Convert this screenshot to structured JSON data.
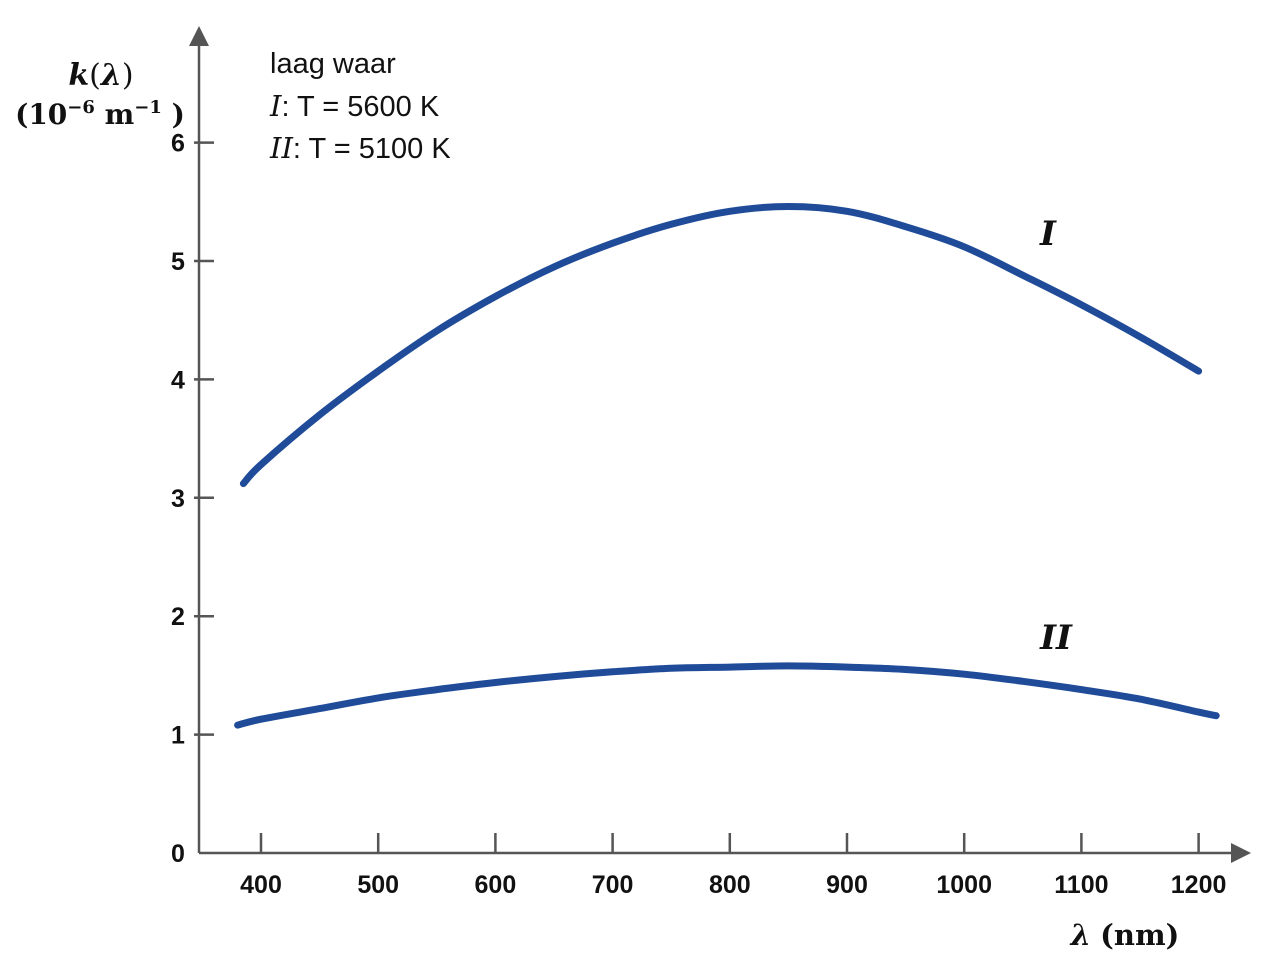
{
  "chart_data": {
    "type": "line",
    "ylabel": {
      "symbol": "k",
      "arg": "λ",
      "unit_base": "10",
      "unit_exp": "−6",
      "unit_m": "m",
      "unit_m_exp": "−1"
    },
    "xlabel": {
      "symbol": "λ",
      "unit": "(nm)"
    },
    "xlim": [
      345,
      1245
    ],
    "ylim": [
      0,
      6.8
    ],
    "x_ticks": [
      400,
      500,
      600,
      700,
      800,
      900,
      1000,
      1100,
      1200
    ],
    "y_ticks": [
      1,
      2,
      3,
      4,
      5,
      6
    ],
    "origin_label": "0",
    "legend": {
      "title": "laag waar",
      "entries": [
        {
          "label": "I",
          "text": ": T = 5600 K"
        },
        {
          "label": "II",
          "text": ": T = 5100 K"
        }
      ]
    },
    "series": [
      {
        "name": "I",
        "color": "#1f4b99",
        "x": [
          385,
          400,
          450,
          500,
          550,
          600,
          650,
          700,
          750,
          800,
          850,
          900,
          950,
          1000,
          1050,
          1100,
          1150,
          1200
        ],
        "y": [
          3.12,
          3.28,
          3.7,
          4.07,
          4.41,
          4.7,
          4.95,
          5.15,
          5.31,
          5.42,
          5.46,
          5.42,
          5.29,
          5.12,
          4.88,
          4.63,
          4.36,
          4.07
        ]
      },
      {
        "name": "II",
        "color": "#1f4b99",
        "x": [
          380,
          400,
          450,
          500,
          550,
          600,
          650,
          700,
          750,
          800,
          850,
          900,
          950,
          1000,
          1050,
          1100,
          1150,
          1200,
          1215
        ],
        "y": [
          1.08,
          1.13,
          1.22,
          1.31,
          1.38,
          1.44,
          1.49,
          1.53,
          1.56,
          1.57,
          1.58,
          1.57,
          1.55,
          1.51,
          1.45,
          1.38,
          1.3,
          1.19,
          1.16
        ]
      }
    ]
  }
}
